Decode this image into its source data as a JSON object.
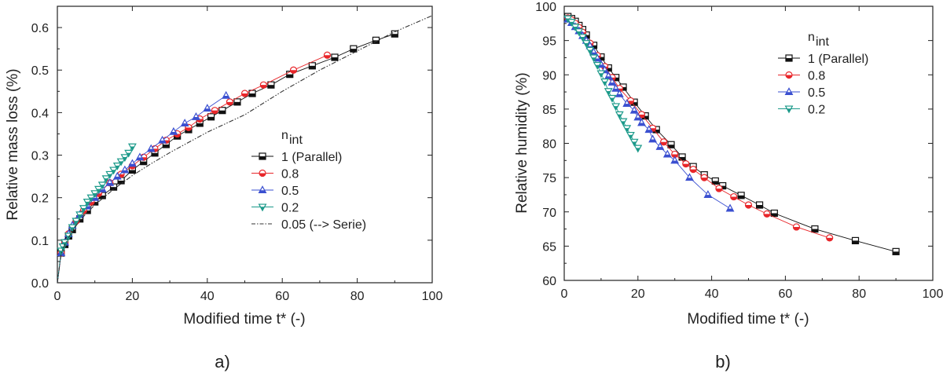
{
  "colors": {
    "black": "#111111",
    "red": "#e8262a",
    "blue": "#3a4fd0",
    "teal": "#1c9a8a",
    "dashdot": "#333333",
    "axis": "#222222"
  },
  "chart_data": [
    {
      "type": "scatter",
      "panel_label": "a)",
      "xlabel": "Modified time t* (-)",
      "ylabel": "Relative mass loss (%)",
      "xlim": [
        0,
        100
      ],
      "ylim": [
        0,
        0.65
      ],
      "xticks": [
        "0",
        "20",
        "40",
        "60",
        "80",
        "100"
      ],
      "xtick_values": [
        0,
        20,
        40,
        60,
        80,
        100
      ],
      "yticks": [
        "0.0",
        "0.1",
        "0.2",
        "0.3",
        "0.4",
        "0.5",
        "0.6"
      ],
      "ytick_values": [
        0,
        0.1,
        0.2,
        0.3,
        0.4,
        0.5,
        0.6
      ],
      "legend_title": "n",
      "legend_title_sub": "int",
      "legend_position": "lower-right",
      "series": [
        {
          "name": "1  (Parallel)",
          "color_key": "black",
          "marker": "square-half",
          "x": [
            0,
            1,
            2,
            3,
            4,
            6,
            8,
            10,
            12,
            15,
            17,
            20,
            23,
            26,
            29,
            32,
            35,
            38,
            41,
            44,
            48,
            52,
            57,
            62,
            68,
            74,
            79,
            85,
            90
          ],
          "y": [
            0,
            0.07,
            0.09,
            0.11,
            0.125,
            0.15,
            0.17,
            0.19,
            0.205,
            0.225,
            0.24,
            0.265,
            0.285,
            0.305,
            0.325,
            0.345,
            0.36,
            0.375,
            0.39,
            0.405,
            0.425,
            0.445,
            0.465,
            0.49,
            0.51,
            0.53,
            0.55,
            0.57,
            0.585
          ]
        },
        {
          "name": "0.8",
          "color_key": "red",
          "marker": "circle-half",
          "x": [
            0,
            1,
            2,
            3,
            5,
            7,
            9,
            11,
            14,
            17,
            20,
            23,
            26,
            29,
            32,
            35,
            38,
            42,
            46,
            50,
            55,
            63,
            72
          ],
          "y": [
            0,
            0.07,
            0.095,
            0.115,
            0.145,
            0.17,
            0.19,
            0.21,
            0.235,
            0.255,
            0.275,
            0.295,
            0.315,
            0.335,
            0.35,
            0.365,
            0.385,
            0.405,
            0.425,
            0.445,
            0.465,
            0.5,
            0.535
          ]
        },
        {
          "name": "0.5",
          "color_key": "blue",
          "marker": "triangle-half",
          "x": [
            0,
            1,
            2,
            3,
            4,
            6,
            8,
            10,
            12,
            14,
            16,
            18,
            20,
            22,
            25,
            28,
            31,
            34,
            37,
            40,
            45
          ],
          "y": [
            0,
            0.07,
            0.095,
            0.115,
            0.135,
            0.16,
            0.18,
            0.2,
            0.22,
            0.235,
            0.25,
            0.265,
            0.28,
            0.295,
            0.315,
            0.335,
            0.355,
            0.375,
            0.39,
            0.41,
            0.44
          ]
        },
        {
          "name": "0.2",
          "color_key": "teal",
          "marker": "triangle-down-half",
          "x": [
            0,
            1,
            1.5,
            2,
            3,
            4,
            5,
            6,
            7,
            8,
            9,
            10,
            11,
            12,
            13,
            14,
            15,
            16,
            17,
            18,
            19,
            20
          ],
          "y": [
            0,
            0.075,
            0.085,
            0.095,
            0.11,
            0.13,
            0.145,
            0.16,
            0.175,
            0.19,
            0.2,
            0.21,
            0.22,
            0.23,
            0.245,
            0.255,
            0.265,
            0.275,
            0.285,
            0.295,
            0.305,
            0.32
          ]
        },
        {
          "name": "0.05 (--> Serie)",
          "color_key": "dashdot",
          "marker": "none",
          "line": "dashdot",
          "x": [
            0,
            1,
            2,
            4,
            6,
            8,
            10,
            15,
            20,
            25,
            30,
            40,
            50,
            60,
            70,
            80,
            90,
            100
          ],
          "y": [
            0,
            0.068,
            0.09,
            0.122,
            0.146,
            0.166,
            0.183,
            0.22,
            0.252,
            0.28,
            0.306,
            0.354,
            0.395,
            0.45,
            0.5,
            0.545,
            0.59,
            0.628
          ]
        }
      ]
    },
    {
      "type": "scatter",
      "panel_label": "b)",
      "xlabel": "Modified time t* (-)",
      "ylabel": "Relative humidity (%)",
      "xlim": [
        0,
        100
      ],
      "ylim": [
        60,
        100
      ],
      "xticks": [
        "0",
        "20",
        "40",
        "60",
        "80",
        "100"
      ],
      "xtick_values": [
        0,
        20,
        40,
        60,
        80,
        100
      ],
      "yticks": [
        "60",
        "65",
        "70",
        "75",
        "80",
        "85",
        "90",
        "95",
        "100"
      ],
      "ytick_values": [
        60,
        65,
        70,
        75,
        80,
        85,
        90,
        95,
        100
      ],
      "legend_title": "n",
      "legend_title_sub": "int",
      "legend_position": "top-right",
      "series": [
        {
          "name": "1  (Parallel)",
          "color_key": "black",
          "marker": "square-half",
          "x": [
            0,
            1,
            2,
            3,
            4,
            5,
            6,
            8,
            10,
            12,
            14,
            16,
            19,
            22,
            25,
            29,
            32,
            35,
            38,
            41,
            43,
            48,
            53,
            57,
            68,
            79,
            90
          ],
          "y": [
            98.7,
            98.5,
            98.2,
            97.8,
            97.2,
            96.6,
            95.8,
            94.3,
            92.6,
            91,
            89.6,
            88.2,
            86,
            84,
            82,
            79.8,
            78,
            76.6,
            75.4,
            74.5,
            73.8,
            72.4,
            71,
            69.8,
            67.5,
            65.8,
            64.2
          ]
        },
        {
          "name": "0.8",
          "color_key": "red",
          "marker": "circle-half",
          "x": [
            0,
            1,
            2,
            3,
            4,
            5,
            7,
            9,
            11,
            13,
            15,
            18,
            21,
            24,
            27,
            30,
            33,
            35,
            38,
            42,
            46,
            50,
            55,
            63,
            72
          ],
          "y": [
            98.6,
            98.3,
            98,
            97.5,
            96.9,
            96.2,
            94.6,
            92.8,
            91.2,
            89.6,
            88,
            86.2,
            84.2,
            82.2,
            80.2,
            78.4,
            77,
            76.2,
            75,
            73.4,
            72.2,
            71,
            69.7,
            67.8,
            66.2
          ]
        },
        {
          "name": "0.5",
          "color_key": "blue",
          "marker": "triangle-half",
          "x": [
            0,
            1,
            2,
            3,
            4,
            5,
            6,
            7,
            8,
            9,
            10,
            11,
            12,
            13,
            14,
            15,
            17,
            19,
            20,
            21,
            23,
            24,
            26,
            28,
            30,
            34,
            39,
            45
          ],
          "y": [
            98.4,
            98.1,
            97.6,
            97,
            96.4,
            95.7,
            95,
            94.2,
            93.3,
            92.4,
            91.5,
            90.7,
            89.8,
            88.9,
            88,
            87.2,
            85.8,
            84.8,
            83.8,
            83,
            82,
            80.6,
            79.5,
            78.4,
            77.5,
            75,
            72.5,
            70.5
          ]
        },
        {
          "name": "0.2",
          "color_key": "teal",
          "marker": "triangle-down-half",
          "x": [
            0,
            1,
            2,
            3,
            4,
            5,
            6,
            7,
            8,
            9,
            10,
            11,
            12,
            13,
            14,
            15,
            16,
            17,
            18,
            19,
            20
          ],
          "y": [
            98.5,
            98.2,
            97.7,
            97,
            96.3,
            95.5,
            94.6,
            93.6,
            92.5,
            91.4,
            90.2,
            89,
            87.6,
            86.6,
            85.4,
            84.2,
            83.2,
            82.2,
            81.2,
            80.2,
            79.3
          ]
        }
      ]
    }
  ]
}
